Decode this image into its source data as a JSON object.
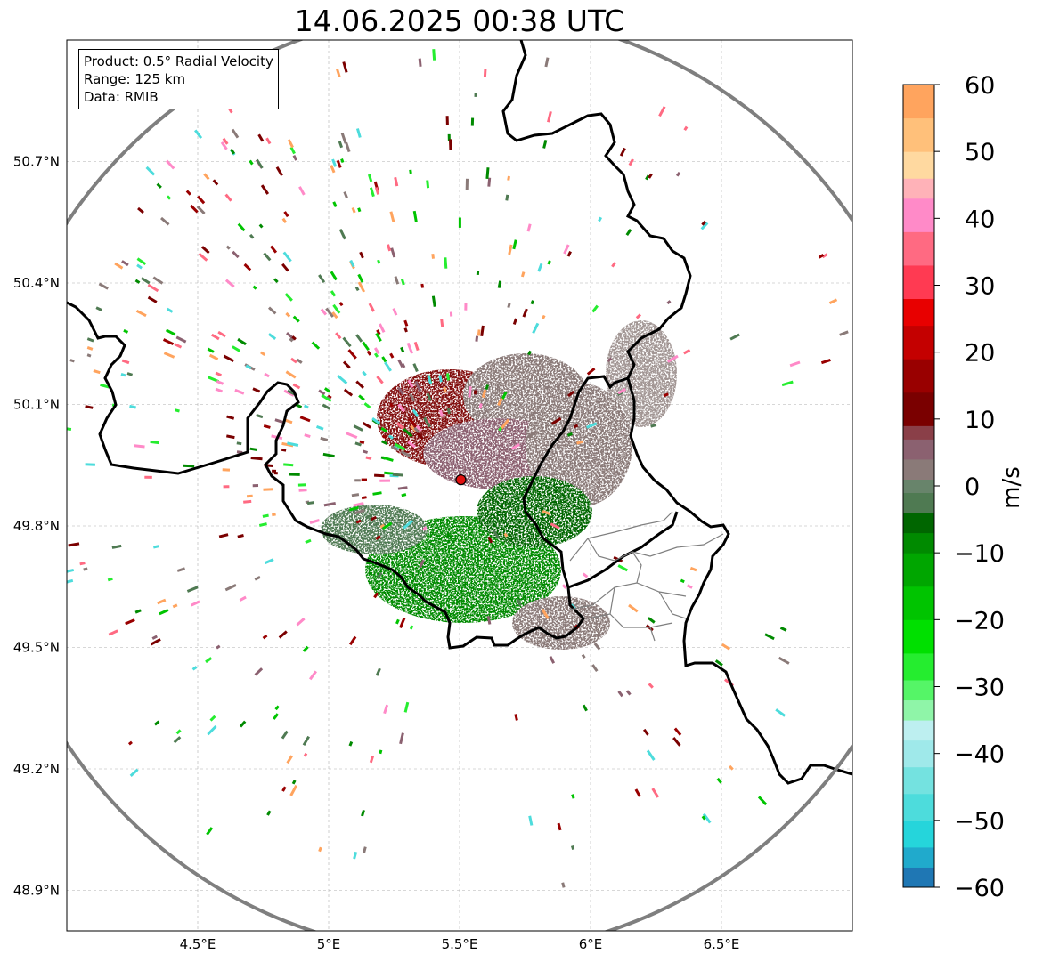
{
  "title": "14.06.2025 00:38 UTC",
  "info_box": {
    "product": "Product: 0.5° Radial Velocity",
    "range": "Range: 125 km",
    "data": "Data: RMIB"
  },
  "map": {
    "lon_range": [
      4.0,
      7.0
    ],
    "lat_range": [
      48.8,
      51.0
    ],
    "lon_ticks": [
      {
        "value": 4.5,
        "label": "4.5°E"
      },
      {
        "value": 5.0,
        "label": "5°E"
      },
      {
        "value": 5.5,
        "label": "5.5°E"
      },
      {
        "value": 6.0,
        "label": "6°E"
      },
      {
        "value": 6.5,
        "label": "6.5°E"
      }
    ],
    "lat_ticks": [
      {
        "value": 50.7,
        "label": "50.7°N"
      },
      {
        "value": 50.4,
        "label": "50.4°N"
      },
      {
        "value": 50.1,
        "label": "50.1°N"
      },
      {
        "value": 49.8,
        "label": "49.8°N"
      },
      {
        "value": 49.5,
        "label": "49.5°N"
      },
      {
        "value": 49.2,
        "label": "49.2°N"
      },
      {
        "value": 48.9,
        "label": "48.9°N"
      }
    ],
    "gridlines": true,
    "radar_site": {
      "lon": 5.505,
      "lat": 49.914
    }
  },
  "colorbar": {
    "label": "m/s",
    "min": -60,
    "max": 60,
    "ticks": [
      {
        "value": 60,
        "label": "60"
      },
      {
        "value": 50,
        "label": "50"
      },
      {
        "value": 40,
        "label": "40"
      },
      {
        "value": 30,
        "label": "30"
      },
      {
        "value": 20,
        "label": "20"
      },
      {
        "value": 10,
        "label": "10"
      },
      {
        "value": 0,
        "label": "0"
      },
      {
        "value": -10,
        "label": "−10"
      },
      {
        "value": -20,
        "label": "−20"
      },
      {
        "value": -30,
        "label": "−30"
      },
      {
        "value": -40,
        "label": "−40"
      },
      {
        "value": -50,
        "label": "−50"
      },
      {
        "value": -60,
        "label": "−60"
      }
    ],
    "color_stops": [
      {
        "from": -60,
        "color": "#1f77b4"
      },
      {
        "from": -57,
        "color": "#20aacc"
      },
      {
        "from": -54,
        "color": "#25d5db"
      },
      {
        "from": -50,
        "color": "#4ddcdc"
      },
      {
        "from": -46,
        "color": "#74e2e0"
      },
      {
        "from": -42,
        "color": "#9fe9ea"
      },
      {
        "from": -38,
        "color": "#bdeff0"
      },
      {
        "from": -35,
        "color": "#8ff5a8"
      },
      {
        "from": -32,
        "color": "#55f567"
      },
      {
        "from": -29,
        "color": "#25ed2f"
      },
      {
        "from": -25,
        "color": "#00e000"
      },
      {
        "from": -20,
        "color": "#00c400"
      },
      {
        "from": -15,
        "color": "#00a600"
      },
      {
        "from": -10,
        "color": "#008a00"
      },
      {
        "from": -7,
        "color": "#006600"
      },
      {
        "from": -4,
        "color": "#4f7a52"
      },
      {
        "from": -1,
        "color": "#68846b"
      },
      {
        "from": 1,
        "color": "#8a7a78"
      },
      {
        "from": 4,
        "color": "#8b6170"
      },
      {
        "from": 7,
        "color": "#8a3f48"
      },
      {
        "from": 9,
        "color": "#7a0000"
      },
      {
        "from": 14,
        "color": "#990000"
      },
      {
        "from": 19,
        "color": "#c40000"
      },
      {
        "from": 24,
        "color": "#e80000"
      },
      {
        "from": 28,
        "color": "#ff3a52"
      },
      {
        "from": 33,
        "color": "#ff6a82"
      },
      {
        "from": 38,
        "color": "#ff8ac8"
      },
      {
        "from": 43,
        "color": "#ffb2b8"
      },
      {
        "from": 46,
        "color": "#ffd9a0"
      },
      {
        "from": 50,
        "color": "#ffc07a"
      },
      {
        "from": 55,
        "color": "#ffa45e"
      }
    ]
  }
}
